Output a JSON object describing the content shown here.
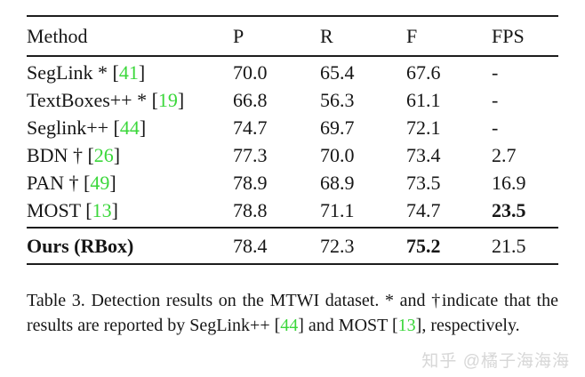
{
  "table": {
    "columns": [
      "Method",
      "P",
      "R",
      "F",
      "FPS"
    ],
    "rows": [
      {
        "method_prefix": "SegLink * [",
        "cite": "41",
        "method_suffix": "]",
        "p": "70.0",
        "r": "65.4",
        "f": "67.6",
        "fps": "-"
      },
      {
        "method_prefix": "TextBoxes++ * [",
        "cite": "19",
        "method_suffix": "]",
        "p": "66.8",
        "r": "56.3",
        "f": "61.1",
        "fps": "-"
      },
      {
        "method_prefix": "Seglink++ [",
        "cite": "44",
        "method_suffix": "]",
        "p": "74.7",
        "r": "69.7",
        "f": "72.1",
        "fps": "-"
      },
      {
        "method_prefix": "BDN † [",
        "cite": "26",
        "method_suffix": "]",
        "p": "77.3",
        "r": "70.0",
        "f": "73.4",
        "fps": "2.7"
      },
      {
        "method_prefix": "PAN † [",
        "cite": "49",
        "method_suffix": "]",
        "p": "78.9",
        "r": "68.9",
        "f": "73.5",
        "fps": "16.9"
      },
      {
        "method_prefix": "MOST [",
        "cite": "13",
        "method_suffix": "]",
        "p": "78.8",
        "r": "71.1",
        "f": "74.7",
        "fps": "23.5"
      }
    ],
    "ours": {
      "method": "Ours (RBox)",
      "p": "78.4",
      "r": "72.3",
      "f": "75.2",
      "fps": "21.5"
    }
  },
  "caption": {
    "seg1": "Table 3.  Detection results on the MTWI dataset.  * and †indicate that the results are reported by SegLink++ [",
    "cite1": "44",
    "seg2": "] and MOST [",
    "cite2": "13",
    "seg3": "], respectively."
  },
  "watermark": "知乎 @橘子海海海",
  "colors": {
    "citation_green": "#3bd73b",
    "text_black": "#161616",
    "watermark_gray": "#d7d7d7"
  }
}
